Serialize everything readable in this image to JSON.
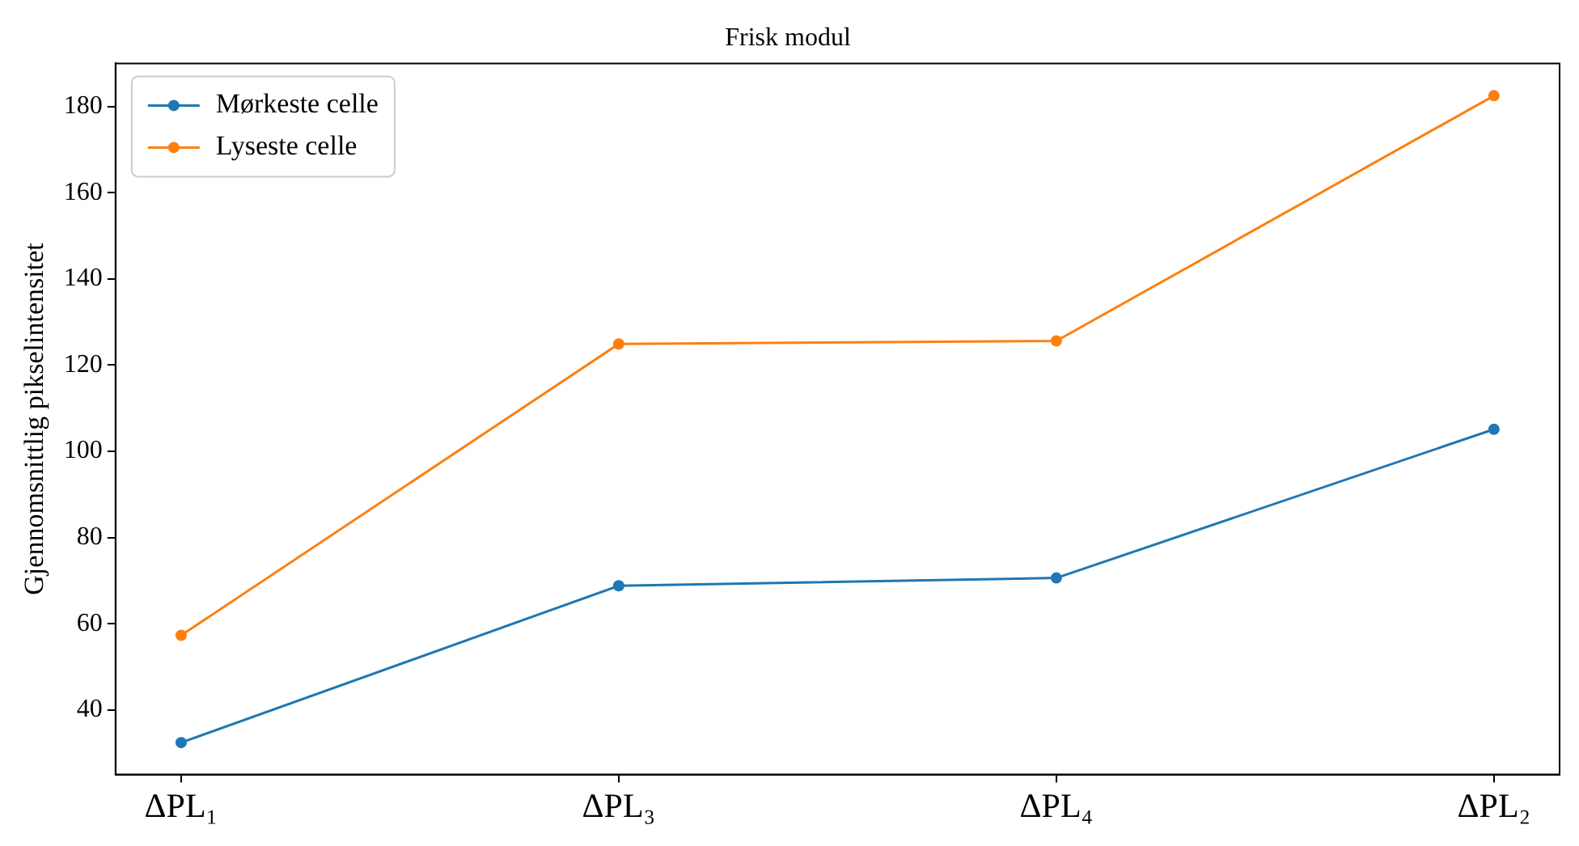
{
  "chart_data": {
    "type": "line",
    "title": "Frisk modul",
    "ylabel": "Gjennomsnittlig pikselintensitet",
    "categories": [
      "ΔPL₁",
      "ΔPL₃",
      "ΔPL₄",
      "ΔPL₂"
    ],
    "series": [
      {
        "name": "Mørkeste celle",
        "color": "#1f77b4",
        "values": [
          32.4,
          68.8,
          70.6,
          105.1
        ]
      },
      {
        "name": "Lyseste celle",
        "color": "#ff7f0e",
        "values": [
          57.3,
          124.9,
          125.6,
          182.5
        ]
      }
    ],
    "ylim": [
      25,
      190
    ],
    "yticks": [
      40,
      60,
      80,
      100,
      120,
      140,
      160,
      180
    ],
    "grid": false,
    "legend": "top left",
    "marker": "circle",
    "line_style": "solid"
  }
}
